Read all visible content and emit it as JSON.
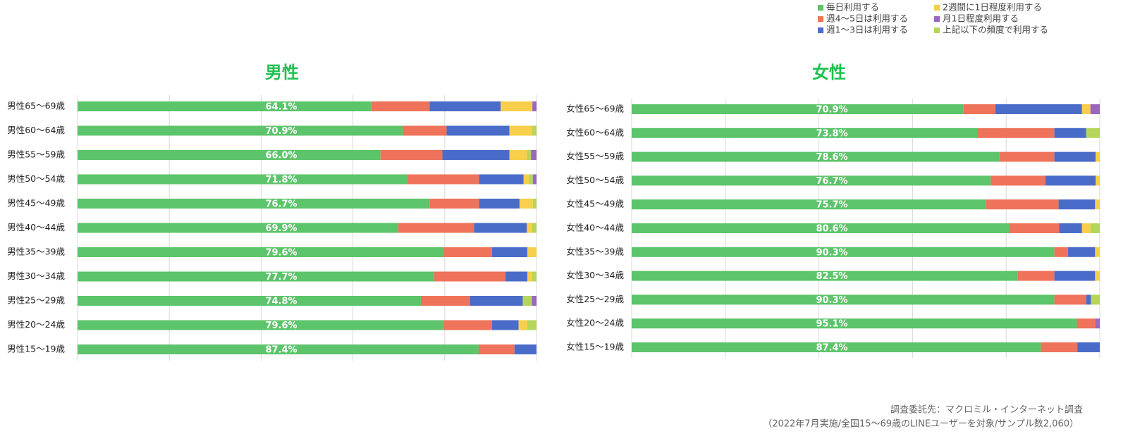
{
  "chart_data": [
    {
      "type": "stacked_bar",
      "title": "男性",
      "categories": [
        "男性65～69歳",
        "男性60～64歳",
        "男性55～59歳",
        "男性50～54歳",
        "男性45～49歳",
        "男性40～44歳",
        "男性35～39歳",
        "男性30～34歳",
        "男性25～29歳",
        "男性20～24歳",
        "男性15～19歳"
      ],
      "series": [
        {
          "name": "毎日利用する",
          "color": "#5cc46a",
          "values": [
            64.1,
            70.9,
            66.0,
            71.8,
            76.7,
            69.9,
            79.6,
            77.7,
            74.8,
            79.6,
            87.4
          ],
          "value_labels": [
            "64.1%",
            "70.9%",
            "66.0%",
            "71.8%",
            "76.7%",
            "69.9%",
            "79.6%",
            "77.7%",
            "74.8%",
            "79.6%",
            "87.4%"
          ]
        },
        {
          "name": "週4～5日は利用する",
          "color": "#ef735a",
          "values": [
            12.6,
            9.5,
            13.5,
            15.7,
            10.8,
            16.5,
            10.7,
            15.5,
            10.7,
            10.7,
            7.8
          ]
        },
        {
          "name": "週1～3日は利用する",
          "color": "#4a6cc9",
          "values": [
            15.5,
            13.7,
            14.6,
            9.7,
            8.8,
            11.5,
            7.7,
            4.8,
            11.5,
            5.8,
            4.8
          ]
        },
        {
          "name": "2週間に1日程度利用する",
          "color": "#f8cf4a",
          "values": [
            6.9,
            4.9,
            3.8,
            1.1,
            2.9,
            1.1,
            2.0,
            1.0,
            0,
            1.9,
            0
          ]
        },
        {
          "name": "月1日程度利用する",
          "color": "#9a66c0",
          "values": [
            0.9,
            0,
            1.2,
            0.8,
            0,
            0,
            0,
            0,
            1.0,
            0,
            0
          ]
        },
        {
          "name": "上記以下の頻度で利用する",
          "color": "#b5d65a",
          "values": [
            0,
            1.0,
            0.9,
            0.9,
            0.8,
            1.0,
            0,
            1.0,
            2.0,
            2.0,
            0
          ]
        }
      ],
      "xlim": [
        0,
        100
      ],
      "xticks": [
        0,
        20,
        40,
        60,
        80,
        100
      ],
      "grid": true
    },
    {
      "type": "stacked_bar",
      "title": "女性",
      "categories": [
        "女性65～69歳",
        "女性60～64歳",
        "女性55～59歳",
        "女性50～54歳",
        "女性45～49歳",
        "女性40～44歳",
        "女性35～39歳",
        "女性30～34歳",
        "女性25～29歳",
        "女性20～24歳",
        "女性15～19歳"
      ],
      "series": [
        {
          "values": [
            70.9,
            73.8,
            78.6,
            76.7,
            75.7,
            80.6,
            90.3,
            82.5,
            90.3,
            95.1,
            87.4
          ],
          "value_labels": [
            "70.9%",
            "73.8%",
            "78.6%",
            "76.7%",
            "75.7%",
            "80.6%",
            "90.3%",
            "82.5%",
            "90.3%",
            "95.1%",
            "87.4%"
          ]
        },
        {
          "values": [
            6.8,
            16.5,
            11.7,
            11.7,
            15.5,
            10.7,
            2.9,
            7.8,
            6.8,
            3.9,
            7.8
          ]
        },
        {
          "values": [
            18.5,
            6.8,
            8.8,
            10.7,
            7.8,
            4.9,
            5.8,
            8.7,
            1.0,
            0,
            4.8
          ]
        },
        {
          "values": [
            1.8,
            0,
            0.9,
            0.9,
            1.0,
            1.8,
            1.0,
            1.0,
            0,
            0,
            0
          ]
        },
        {
          "values": [
            2.0,
            0,
            0,
            0,
            0,
            0,
            0,
            0,
            0,
            1.0,
            0
          ]
        },
        {
          "values": [
            0,
            2.9,
            0,
            0,
            0,
            2.0,
            0,
            0,
            1.9,
            0,
            0
          ]
        }
      ],
      "xlim": [
        0,
        100
      ],
      "xticks": [
        0,
        20,
        40,
        60,
        80,
        100
      ],
      "grid": true
    }
  ],
  "source": [
    "調査委託先：マクロミル・インターネット調査",
    "（2022年7月実施/全国15～69歳のLINEユーザーを対象/サンプル数2,060）"
  ]
}
